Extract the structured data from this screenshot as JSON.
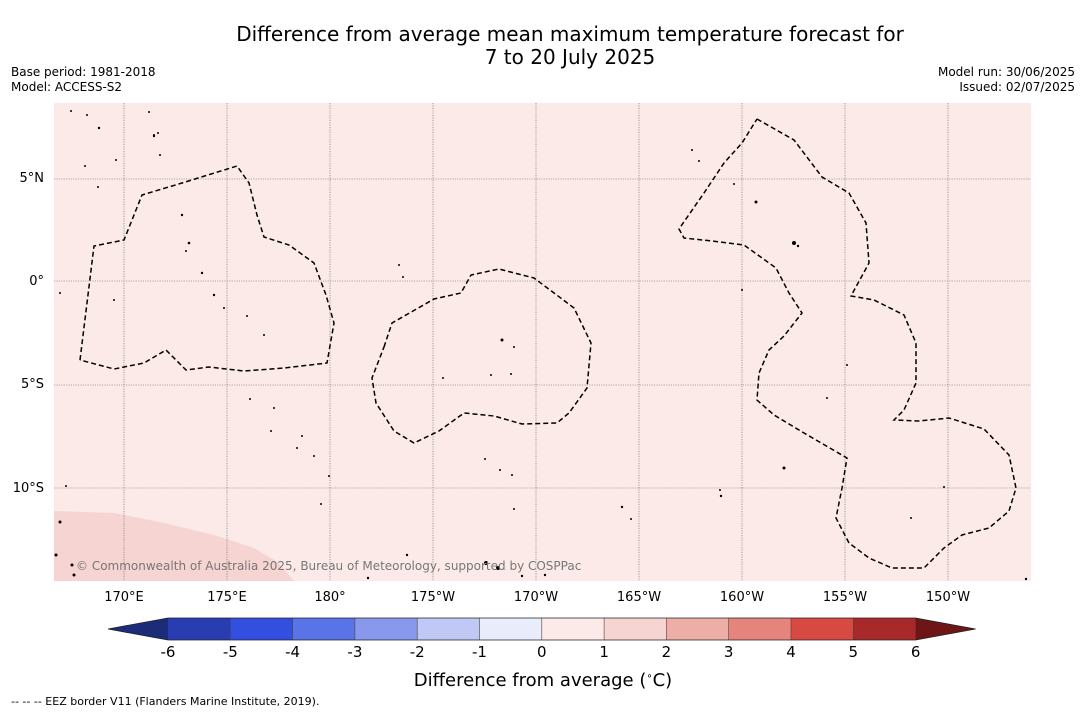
{
  "title_line1": "Difference from average mean maximum temperature forecast for",
  "title_line2": "7 to 20 July 2025",
  "base_period": "Base period: 1981-2018",
  "model": "Model: ACCESS-S2",
  "model_run": "Model run: 30/06/2025",
  "issued": "Issued: 02/07/2025",
  "lat_labels": [
    "5°N",
    "0°",
    "5°S",
    "10°S"
  ],
  "lon_labels": [
    "170°E",
    "175°E",
    "180°",
    "175°W",
    "170°W",
    "165°W",
    "160°W",
    "155°W",
    "150°W"
  ],
  "colorbar": {
    "ticks": [
      "-6",
      "-5",
      "-4",
      "-3",
      "-2",
      "-1",
      "0",
      "1",
      "2",
      "3",
      "4",
      "5",
      "6"
    ],
    "colors": [
      "#1c2c78",
      "#2a3db0",
      "#324fe0",
      "#5a73e6",
      "#8898ec",
      "#c0c8f5",
      "#e9ecfb",
      "#fbeae8",
      "#f5d4d1",
      "#edaea8",
      "#e4847c",
      "#d84a41",
      "#a8292a",
      "#6e1616"
    ],
    "label": "Difference from average ( C)"
  },
  "copyright": "© Commonwealth of Australia 2025, Bureau of Meteorology, supported by COSPPac",
  "footer": "--  --  -- EEZ border V11 (Flanders Marine Institute, 2019)."
}
